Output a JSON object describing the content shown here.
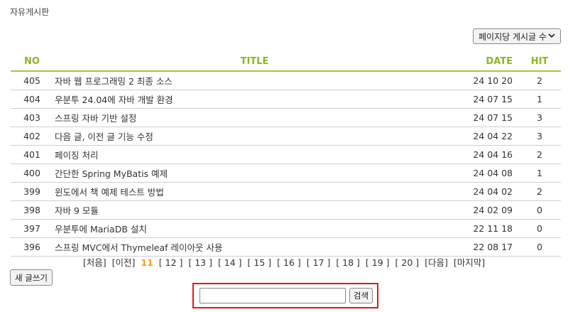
{
  "board": {
    "title": "자유게시판"
  },
  "page_size_select": {
    "selected": "페이지당 게시글 수"
  },
  "table": {
    "headers": {
      "no": "NO",
      "title": "TITLE",
      "date": "DATE",
      "hit": "HIT"
    },
    "rows": [
      {
        "no": "405",
        "title": "자바 웹 프로그래밍 2 최종 소스",
        "date": "24 10 20",
        "hit": "2"
      },
      {
        "no": "404",
        "title": "우분투 24.04에 자바 개발 환경",
        "date": "24 07 15",
        "hit": "1"
      },
      {
        "no": "403",
        "title": "스프링 자바 기반 설정",
        "date": "24 07 15",
        "hit": "3"
      },
      {
        "no": "402",
        "title": "다음 글, 이전 글 기능 수정",
        "date": "24 04 22",
        "hit": "3"
      },
      {
        "no": "401",
        "title": "페이징 처리",
        "date": "24 04 16",
        "hit": "2"
      },
      {
        "no": "400",
        "title": "간단한 Spring MyBatis 예제",
        "date": "24 04 08",
        "hit": "1"
      },
      {
        "no": "399",
        "title": "윈도에서 책 예제 테스트 방법",
        "date": "24 04 02",
        "hit": "2"
      },
      {
        "no": "398",
        "title": "자바 9 모듈",
        "date": "24 02 09",
        "hit": "0"
      },
      {
        "no": "397",
        "title": "우분투에 MariaDB 설치",
        "date": "22 11 18",
        "hit": "0"
      },
      {
        "no": "396",
        "title": "스프링 MVC에서 Thymeleaf 레이아웃 사용",
        "date": "22 08 17",
        "hit": "0"
      }
    ]
  },
  "pagination": {
    "first": "[처음]",
    "prev": "[이전]",
    "current": "11",
    "pages": [
      "[ 12 ]",
      "[ 13 ]",
      "[ 14 ]",
      "[ 15 ]",
      "[ 16 ]",
      "[ 17 ]",
      "[ 18 ]",
      "[ 19 ]",
      "[ 20 ]"
    ],
    "next": "[다음]",
    "last": "[마지막]"
  },
  "new_post_button": {
    "label": "새 글쓰기"
  },
  "search": {
    "value": "",
    "button_label": "검색"
  },
  "colors": {
    "header_accent": "#8fb422",
    "current_page": "#f0a020",
    "search_highlight": "#e01818"
  },
  "icons": {
    "select_arrow": "chevron-down-icon"
  }
}
